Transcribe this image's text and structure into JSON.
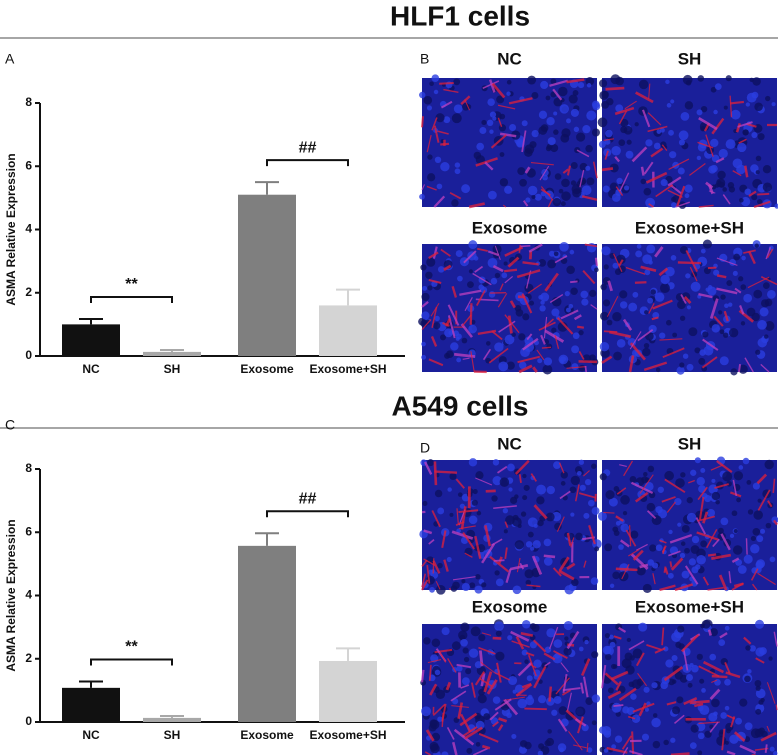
{
  "figure": {
    "sections": [
      {
        "title": "HLF1 cells",
        "image_panel": "B",
        "images": [
          "NC",
          "SH",
          "Exosome",
          "Exosome+SH"
        ]
      },
      {
        "title": "A549 cells",
        "image_panel": "D",
        "images": [
          "NC",
          "SH",
          "Exosome",
          "Exosome+SH"
        ]
      }
    ]
  },
  "chart_data": [
    {
      "type": "bar",
      "panel": "A",
      "ylabel": "ASMA Relative Expression",
      "categories": [
        "NC",
        "SH",
        "Exosome",
        "Exosome+SH"
      ],
      "values": [
        1.0,
        0.13,
        5.1,
        1.6
      ],
      "errors": [
        0.17,
        0.06,
        0.4,
        0.5
      ],
      "colors": [
        "#111111",
        "#a8a8a8",
        "#7f7f7f",
        "#d4d4d4"
      ],
      "ylim": [
        0,
        8
      ],
      "yticks": [
        0,
        2,
        4,
        6,
        8
      ],
      "annotations": [
        "**",
        "##"
      ]
    },
    {
      "type": "bar",
      "panel": "C",
      "ylabel": "ASMA Relative Expression",
      "categories": [
        "NC",
        "SH",
        "Exosome",
        "Exosome+SH"
      ],
      "values": [
        1.08,
        0.13,
        5.57,
        1.93
      ],
      "errors": [
        0.2,
        0.06,
        0.4,
        0.4
      ],
      "colors": [
        "#111111",
        "#a8a8a8",
        "#7f7f7f",
        "#d4d4d4"
      ],
      "ylim": [
        0,
        8
      ],
      "yticks": [
        0,
        2,
        4,
        6,
        8
      ],
      "annotations": [
        "**",
        "##"
      ]
    }
  ]
}
